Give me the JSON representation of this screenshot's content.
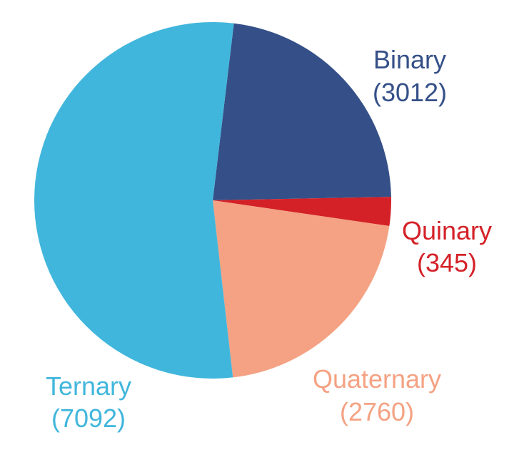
{
  "chart_data": {
    "type": "pie",
    "start_angle_deg": 6.8,
    "direction": "clockwise",
    "slices": [
      {
        "label": "Binary",
        "value_text": "(3012)",
        "value": 3012,
        "color": "#355088"
      },
      {
        "label": "Quinary",
        "value_text": "(345)",
        "value": 345,
        "color": "#d42128"
      },
      {
        "label": "Quaternary",
        "value_text": "(2760)",
        "value": 2760,
        "color": "#f4a283"
      },
      {
        "label": "Ternary",
        "value_text": "(7092)",
        "value": 7092,
        "color": "#41b6dc"
      }
    ]
  }
}
